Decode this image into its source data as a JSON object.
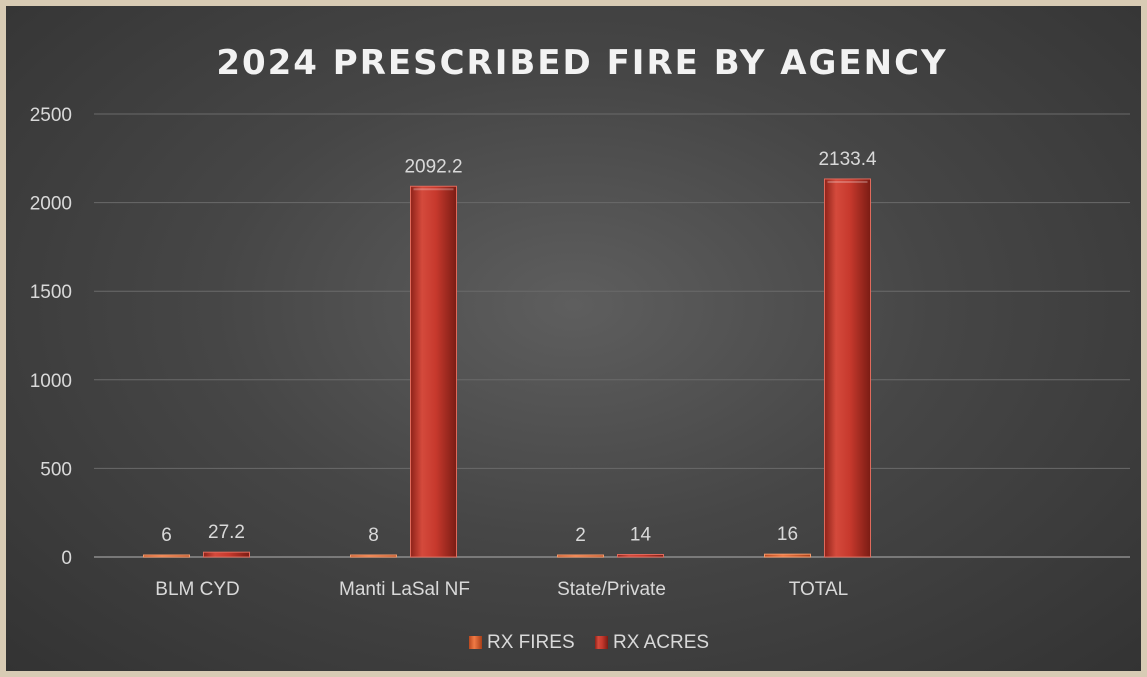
{
  "chart_data": {
    "type": "bar",
    "title": "2024 PRESCRIBED FIRE BY AGENCY",
    "xlabel": "",
    "ylabel": "",
    "categories": [
      "BLM CYD",
      "Manti LaSal NF",
      "State/Private",
      "TOTAL"
    ],
    "series": [
      {
        "name": "RX FIRES",
        "values": [
          6,
          8,
          2,
          16
        ],
        "labels": [
          "6",
          "8",
          "2",
          "16"
        ],
        "color": "#e8683c"
      },
      {
        "name": "RX ACRES",
        "values": [
          27.2,
          2092.2,
          14,
          2133.4
        ],
        "labels": [
          "27.2",
          "2092.2",
          "14",
          "2133.4"
        ],
        "color": "#c0392b"
      }
    ],
    "ylim": [
      0,
      2500
    ],
    "yticks": [
      "0",
      "500",
      "1000",
      "1500",
      "2000",
      "2500"
    ],
    "grid": true,
    "legend": "bottom"
  }
}
